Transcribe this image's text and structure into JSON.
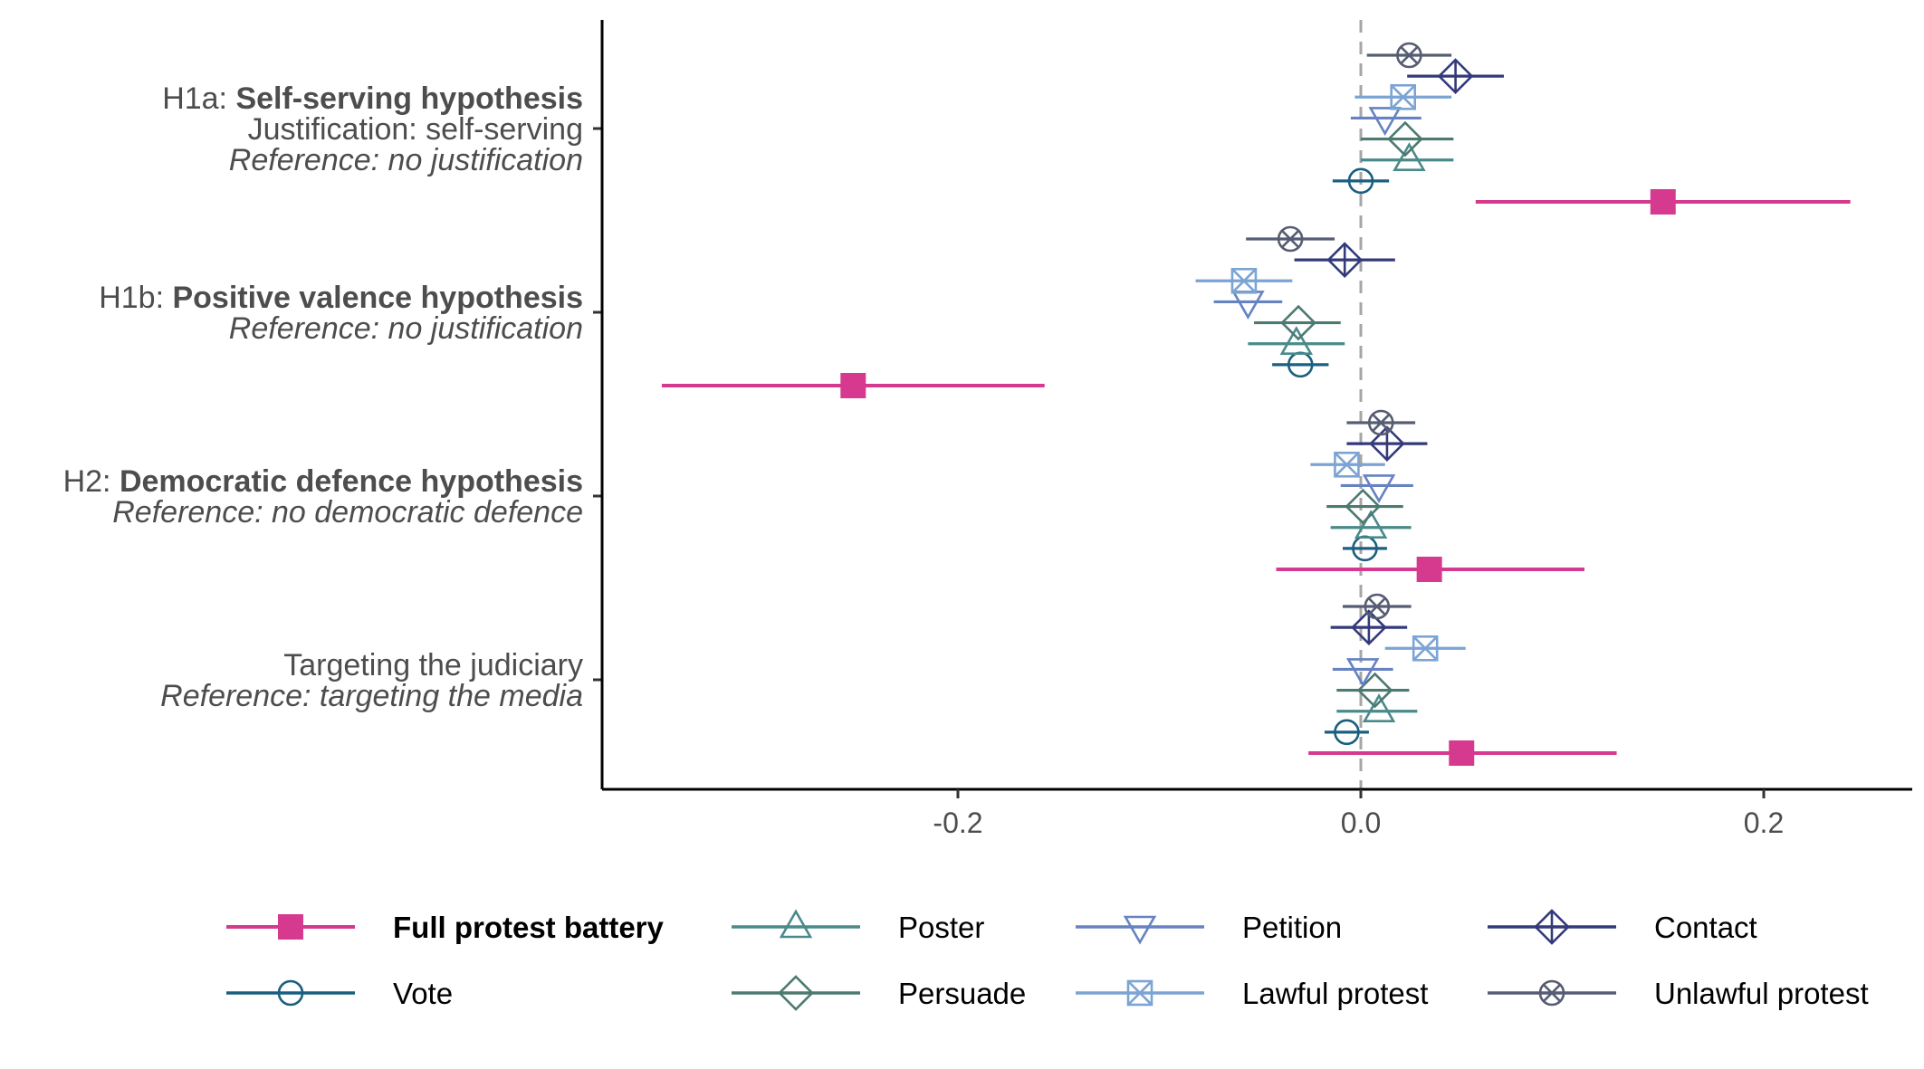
{
  "chart_data": {
    "type": "scatter",
    "subtype": "coefficient-plot",
    "xlim": [
      -0.37,
      0.27
    ],
    "xticks": [
      {
        "value": -0.2,
        "label": "-0.2"
      },
      {
        "value": 0.0,
        "label": "0.0"
      },
      {
        "value": 0.2,
        "label": "0.2"
      }
    ],
    "reference_line": {
      "x": 0.0,
      "style": "dashed",
      "color": "#a6a6a6"
    },
    "grid": false,
    "legend_position": "bottom",
    "rows": [
      {
        "id": "h1a",
        "label_lines": [
          [
            {
              "text": "H1a: ",
              "style": "normal"
            },
            {
              "text": "Self-serving hypothesis",
              "style": "bold"
            }
          ],
          [
            {
              "text": "Justification: self-serving",
              "style": "normal"
            }
          ],
          [
            {
              "text": "Reference: no justification",
              "style": "italic"
            }
          ]
        ]
      },
      {
        "id": "h1b",
        "label_lines": [
          [
            {
              "text": "H1b: ",
              "style": "normal"
            },
            {
              "text": "Positive valence hypothesis",
              "style": "bold"
            }
          ],
          [
            {
              "text": "Reference: no justification",
              "style": "italic"
            }
          ]
        ]
      },
      {
        "id": "h2",
        "label_lines": [
          [
            {
              "text": "H2: ",
              "style": "normal"
            },
            {
              "text": "Democratic defence hypothesis",
              "style": "bold"
            }
          ],
          [
            {
              "text": "Reference: no democratic defence",
              "style": "italic"
            }
          ]
        ]
      },
      {
        "id": "judiciary",
        "label_lines": [
          [
            {
              "text": "Targeting the judiciary",
              "style": "normal"
            }
          ],
          [
            {
              "text": "Reference: targeting the media",
              "style": "italic"
            }
          ]
        ]
      }
    ],
    "series": [
      {
        "name": "Full protest battery",
        "bold": true,
        "color": "#d63a8e",
        "marker": "filled-square",
        "values": [
          {
            "est": 0.15,
            "lo": 0.057,
            "hi": 0.243
          },
          {
            "est": -0.252,
            "lo": -0.347,
            "hi": -0.157
          },
          {
            "est": 0.034,
            "lo": -0.042,
            "hi": 0.111
          },
          {
            "est": 0.05,
            "lo": -0.026,
            "hi": 0.127
          }
        ]
      },
      {
        "name": "Vote",
        "color": "#1a5e80",
        "marker": "circle",
        "values": [
          {
            "est": 0.0,
            "lo": -0.014,
            "hi": 0.014
          },
          {
            "est": -0.03,
            "lo": -0.044,
            "hi": -0.016
          },
          {
            "est": 0.002,
            "lo": -0.009,
            "hi": 0.013
          },
          {
            "est": -0.007,
            "lo": -0.018,
            "hi": 0.004
          }
        ]
      },
      {
        "name": "Poster",
        "color": "#4a8a8a",
        "marker": "triangle-up",
        "values": [
          {
            "est": 0.024,
            "lo": 0.0,
            "hi": 0.046
          },
          {
            "est": -0.032,
            "lo": -0.056,
            "hi": -0.008
          },
          {
            "est": 0.005,
            "lo": -0.015,
            "hi": 0.025
          },
          {
            "est": 0.009,
            "lo": -0.012,
            "hi": 0.028
          }
        ]
      },
      {
        "name": "Persuade",
        "color": "#4d7a70",
        "marker": "diamond",
        "values": [
          {
            "est": 0.022,
            "lo": 0.0,
            "hi": 0.046
          },
          {
            "est": -0.031,
            "lo": -0.053,
            "hi": -0.01
          },
          {
            "est": 0.001,
            "lo": -0.017,
            "hi": 0.021
          },
          {
            "est": 0.007,
            "lo": -0.012,
            "hi": 0.024
          }
        ]
      },
      {
        "name": "Petition",
        "color": "#6682c2",
        "marker": "triangle-down",
        "values": [
          {
            "est": 0.012,
            "lo": -0.005,
            "hi": 0.03
          },
          {
            "est": -0.056,
            "lo": -0.073,
            "hi": -0.039
          },
          {
            "est": 0.009,
            "lo": -0.01,
            "hi": 0.026
          },
          {
            "est": 0.001,
            "lo": -0.014,
            "hi": 0.016
          }
        ]
      },
      {
        "name": "Lawful protest",
        "color": "#7ba4d4",
        "marker": "square-x",
        "values": [
          {
            "est": 0.021,
            "lo": -0.003,
            "hi": 0.045
          },
          {
            "est": -0.058,
            "lo": -0.082,
            "hi": -0.034
          },
          {
            "est": -0.007,
            "lo": -0.025,
            "hi": 0.012
          },
          {
            "est": 0.032,
            "lo": 0.012,
            "hi": 0.052
          }
        ]
      },
      {
        "name": "Contact",
        "color": "#333a7a",
        "marker": "diamond-plus",
        "values": [
          {
            "est": 0.047,
            "lo": 0.023,
            "hi": 0.071
          },
          {
            "est": -0.008,
            "lo": -0.033,
            "hi": 0.017
          },
          {
            "est": 0.013,
            "lo": -0.007,
            "hi": 0.033
          },
          {
            "est": 0.004,
            "lo": -0.015,
            "hi": 0.023
          }
        ]
      },
      {
        "name": "Unlawful protest",
        "color": "#565d72",
        "marker": "circle-x",
        "values": [
          {
            "est": 0.024,
            "lo": 0.003,
            "hi": 0.045
          },
          {
            "est": -0.035,
            "lo": -0.057,
            "hi": -0.013
          },
          {
            "est": 0.01,
            "lo": -0.007,
            "hi": 0.027
          },
          {
            "est": 0.008,
            "lo": -0.009,
            "hi": 0.025
          }
        ]
      }
    ]
  }
}
